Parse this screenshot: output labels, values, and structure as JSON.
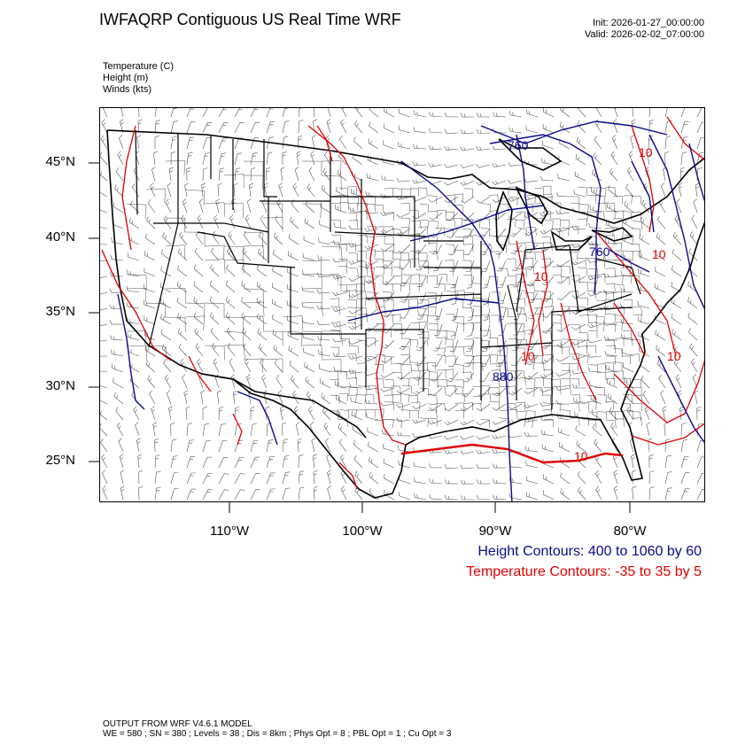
{
  "header": {
    "title": "IWFAQRP Contiguous US Real Time WRF",
    "init": "Init: 2026-01-27_00:00:00",
    "valid": "Valid: 2026-02-02_07:00:00"
  },
  "fields": [
    "Temperature   (C)",
    "Height   (m)",
    "Winds   (kts)"
  ],
  "map": {
    "lat_labels": [
      "45°N",
      "40°N",
      "35°N",
      "30°N",
      "25°N"
    ],
    "lon_labels": [
      "110°W",
      "100°W",
      "90°W",
      "80°W"
    ],
    "height_contour_labels": [
      "760",
      "760",
      "880"
    ],
    "temp_contour_labels": [
      "10",
      "10",
      "10",
      "10",
      "10",
      "10"
    ],
    "colors": {
      "height": "#0a0a8c",
      "temperature": "#e00000",
      "boundaries": "#000000",
      "barbs": "#555555"
    }
  },
  "legend": {
    "height": "Height Contours: 400 to 1060 by 60",
    "temperature": "Temperature Contours: -35 to 35 by 5"
  },
  "footer": {
    "line1": "OUTPUT FROM WRF V4.6.1 MODEL",
    "line2": "WE = 580 ; SN = 380 ; Levels = 38 ; Dis = 8km ; Phys Opt = 8 ; PBL Opt = 1 ; Cu Opt = 3"
  }
}
